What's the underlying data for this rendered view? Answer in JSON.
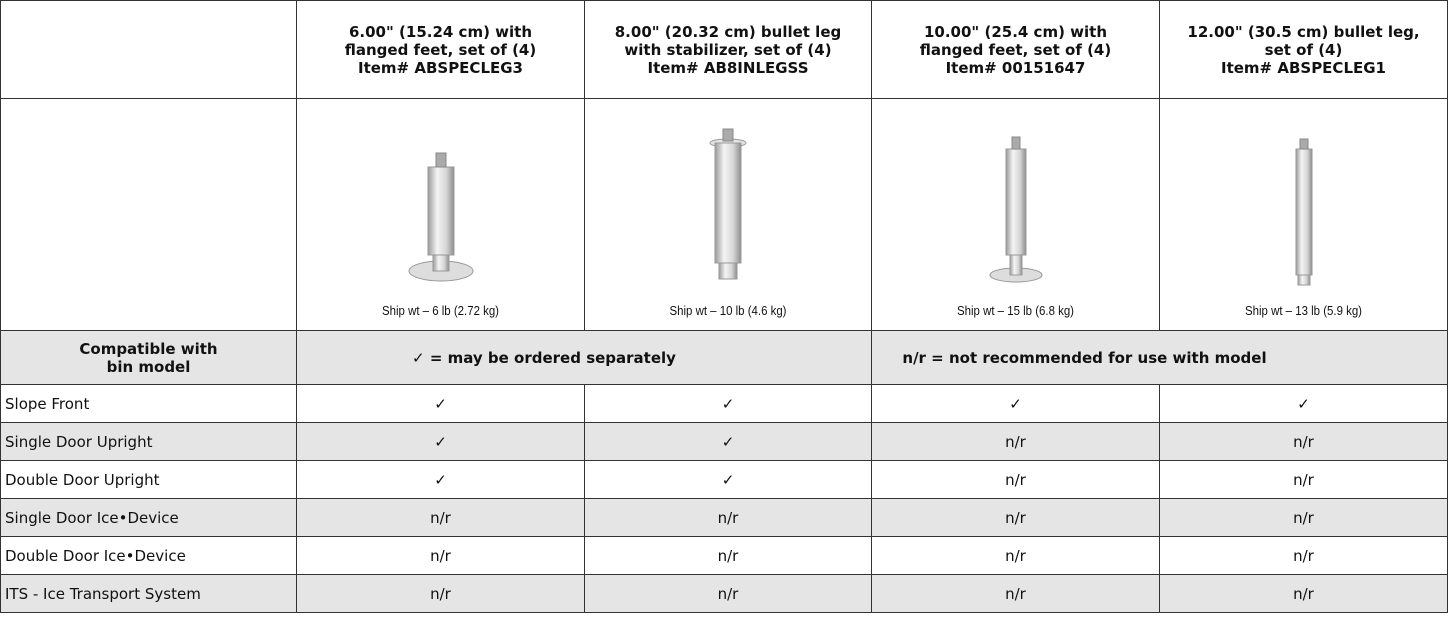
{
  "header": {
    "columns": [
      {
        "lines": [
          "6.00\" (15.24 cm) with",
          "flanged feet, set of (4)",
          "Item# ABSPECLEG3"
        ],
        "ship_wt": "Ship wt – 6 lb (2.72 kg)"
      },
      {
        "lines": [
          "8.00\" (20.32 cm) bullet leg",
          "with stabilizer, set of (4)",
          "Item# AB8INLEGSS"
        ],
        "ship_wt": "Ship wt – 10 lb (4.6 kg)"
      },
      {
        "lines": [
          "10.00\" (25.4 cm) with",
          "flanged feet, set of (4)",
          "Item# 00151647"
        ],
        "ship_wt": "Ship wt – 15 lb (6.8 kg)"
      },
      {
        "lines": [
          "12.00\" (30.5 cm) bullet leg,",
          "set of (4)",
          "Item# ABSPECLEG1"
        ],
        "ship_wt": "Ship wt – 13 lb (5.9 kg)"
      }
    ]
  },
  "legend": {
    "label": [
      "Compatible with",
      "bin model"
    ],
    "check": "✓ = may be ordered separately",
    "nr": "n/r = not recommended for use with model"
  },
  "table": {
    "rows": [
      [
        "Slope Front",
        "✓",
        "✓",
        "✓",
        "✓"
      ],
      [
        "Single Door Upright",
        "✓",
        "✓",
        "n/r",
        "n/r"
      ],
      [
        "Double Door Upright",
        "✓",
        "✓",
        "n/r",
        "n/r"
      ],
      [
        "Single Door Ice•Device",
        "n/r",
        "n/r",
        "n/r",
        "n/r"
      ],
      [
        "Double Door Ice•Device",
        "n/r",
        "n/r",
        "n/r",
        "n/r"
      ],
      [
        "ITS - Ice Transport System",
        "n/r",
        "n/r",
        "n/r",
        "n/r"
      ]
    ]
  }
}
